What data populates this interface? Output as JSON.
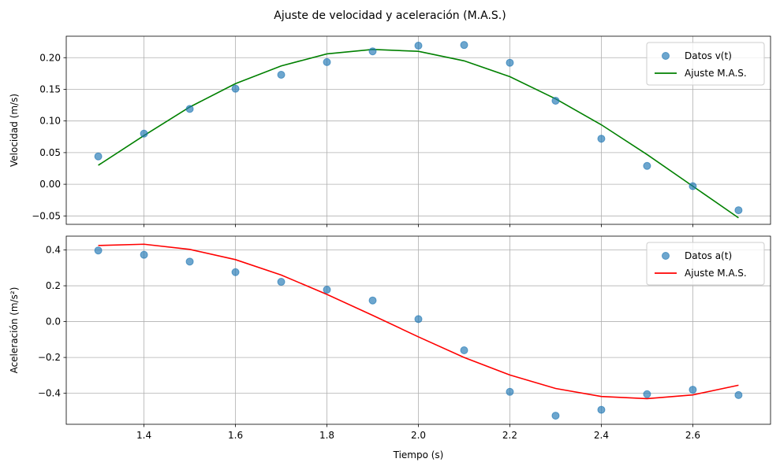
{
  "figure": {
    "title": "Ajuste de velocidad y aceleración (M.A.S.)"
  },
  "chart_data": [
    {
      "type": "scatter",
      "ylabel": "Velocidad (m/s)",
      "xlabel": "",
      "xlim": [
        1.23,
        2.77
      ],
      "ylim": [
        -0.0633,
        0.2339
      ],
      "xticks": [
        "1.4",
        "1.6",
        "1.8",
        "2.0",
        "2.2",
        "2.4",
        "2.6"
      ],
      "yticks": [
        "−0.05",
        "0.00",
        "0.05",
        "0.10",
        "0.15",
        "0.20"
      ],
      "grid": true,
      "legend_position": "top-right",
      "series": [
        {
          "name": "Datos v(t)",
          "kind": "points",
          "color": "#1f77b4",
          "x": [
            1.3,
            1.4,
            1.5,
            1.6,
            1.7,
            1.8,
            1.9,
            2.0,
            2.1,
            2.2,
            2.3,
            2.4,
            2.5,
            2.6,
            2.7
          ],
          "y": [
            0.044,
            0.08,
            0.119,
            0.151,
            0.173,
            0.193,
            0.21,
            0.219,
            0.22,
            0.192,
            0.132,
            0.072,
            0.029,
            -0.003,
            -0.041
          ]
        },
        {
          "name": "Ajuste M.A.S.",
          "kind": "line",
          "color": "#008000",
          "x": [
            1.3,
            1.4,
            1.5,
            1.6,
            1.7,
            1.8,
            1.9,
            2.0,
            2.1,
            2.2,
            2.3,
            2.4,
            2.5,
            2.6,
            2.7
          ],
          "y": [
            0.03,
            0.077,
            0.122,
            0.159,
            0.187,
            0.206,
            0.213,
            0.21,
            0.195,
            0.17,
            0.135,
            0.094,
            0.047,
            -0.003,
            -0.053
          ]
        }
      ]
    },
    {
      "type": "scatter",
      "ylabel": "Aceleración (m/s²)",
      "xlabel": "Tiempo (s)",
      "xlim": [
        1.23,
        2.77
      ],
      "ylim": [
        -0.573,
        0.477
      ],
      "xticks": [
        "1.4",
        "1.6",
        "1.8",
        "2.0",
        "2.2",
        "2.4",
        "2.6"
      ],
      "yticks": [
        "−0.4",
        "−0.2",
        "0.0",
        "0.2",
        "0.4"
      ],
      "grid": true,
      "legend_position": "top-right",
      "series": [
        {
          "name": "Datos a(t)",
          "kind": "points",
          "color": "#1f77b4",
          "x": [
            1.3,
            1.4,
            1.5,
            1.6,
            1.7,
            1.8,
            1.9,
            2.0,
            2.1,
            2.2,
            2.3,
            2.4,
            2.5,
            2.6,
            2.7
          ],
          "y": [
            0.397,
            0.373,
            0.335,
            0.276,
            0.222,
            0.178,
            0.118,
            0.014,
            -0.16,
            -0.392,
            -0.525,
            -0.492,
            -0.405,
            -0.38,
            -0.41
          ]
        },
        {
          "name": "Ajuste M.A.S.",
          "kind": "line",
          "color": "#ff0000",
          "x": [
            1.3,
            1.4,
            1.5,
            1.6,
            1.7,
            1.8,
            1.9,
            2.0,
            2.1,
            2.2,
            2.3,
            2.4,
            2.5,
            2.6,
            2.7
          ],
          "y": [
            0.425,
            0.432,
            0.403,
            0.346,
            0.26,
            0.152,
            0.035,
            -0.085,
            -0.2,
            -0.298,
            -0.373,
            -0.418,
            -0.43,
            -0.409,
            -0.355
          ]
        }
      ]
    }
  ]
}
